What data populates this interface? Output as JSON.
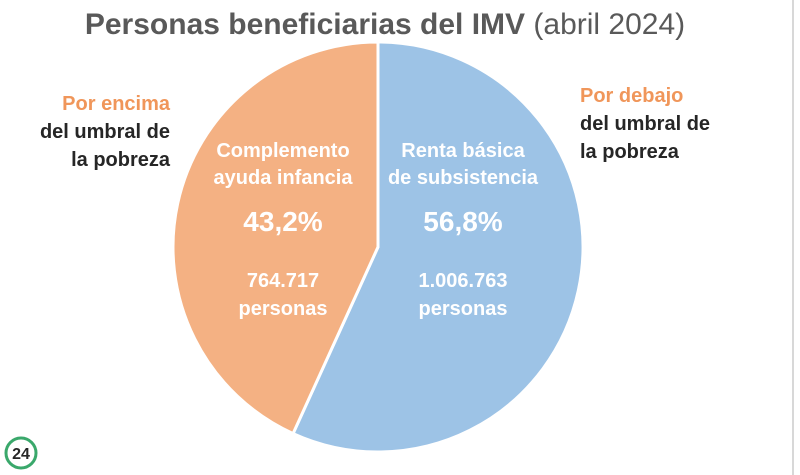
{
  "chart_data": {
    "type": "pie",
    "title": "Personas beneficiarias del IMV",
    "subtitle": "(abril 2024)",
    "slices": [
      {
        "name": "Renta básica de subsistencia",
        "label_lines": [
          "Renta básica",
          "de subsistencia"
        ],
        "value": 56.8,
        "value_label": "56,8%",
        "count_label": "1.006.763",
        "unit_label": "personas",
        "color": "#9dc3e6"
      },
      {
        "name": "Complemento ayuda infancia",
        "label_lines": [
          "Complemento",
          "ayuda infancia"
        ],
        "value": 43.2,
        "value_label": "43,2%",
        "count_label": "764.717",
        "unit_label": "personas",
        "color": "#f4b183"
      }
    ],
    "annotations": {
      "left": {
        "accent": "Por encima",
        "lines": [
          "del umbral de",
          "la pobreza"
        ]
      },
      "right": {
        "accent": "Por debajo",
        "lines": [
          "del umbral de",
          "la pobreza"
        ]
      }
    }
  },
  "logo": {
    "text": "24",
    "color": "#3aa86b"
  }
}
